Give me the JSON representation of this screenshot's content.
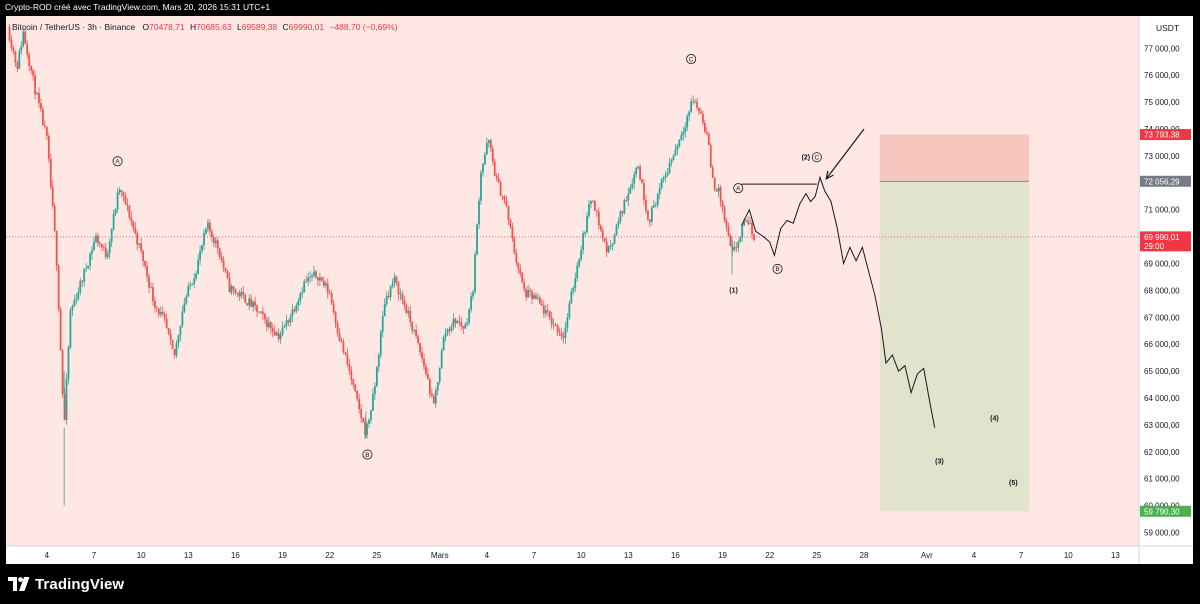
{
  "header": {
    "attribution": "Crypto-ROD créé avec TradingView.com, Mars 20, 2026 15:31 UTC+1"
  },
  "footer": {
    "brand": "TradingView"
  },
  "chart_data": {
    "type": "candlestick",
    "legend": {
      "symbol": "Bitcoin / TetherUS · 3h · Binance",
      "o_label": "O",
      "o": "70478,71",
      "h_label": "H",
      "h": "70685,63",
      "l_label": "L",
      "l": "69589,38",
      "c_label": "C",
      "c": "69990,01",
      "change": "−488,70 (−0,69%)"
    },
    "currency": "USDT",
    "ylim": [
      58500,
      78200
    ],
    "y_ticks": [
      {
        "value": 59000,
        "label": "59 000,00"
      },
      {
        "value": 60000,
        "label": "60 000,00"
      },
      {
        "value": 61000,
        "label": "61 000,00"
      },
      {
        "value": 62000,
        "label": "62 000,00"
      },
      {
        "value": 63000,
        "label": "63 000,00"
      },
      {
        "value": 64000,
        "label": "64 000,00"
      },
      {
        "value": 65000,
        "label": "65 000,00"
      },
      {
        "value": 66000,
        "label": "66 000,00"
      },
      {
        "value": 67000,
        "label": "67 000,00"
      },
      {
        "value": 68000,
        "label": "68 000,00"
      },
      {
        "value": 69000,
        "label": "69 000,00"
      },
      {
        "value": 71000,
        "label": "71 000,00"
      },
      {
        "value": 72000,
        "label": "72 000,00"
      },
      {
        "value": 73000,
        "label": "73 000,00"
      },
      {
        "value": 74000,
        "label": "74 000,00"
      },
      {
        "value": 75000,
        "label": "75 000,00"
      },
      {
        "value": 76000,
        "label": "76 000,00"
      },
      {
        "value": 77000,
        "label": "77 000,00"
      }
    ],
    "price_tags": [
      {
        "value": 73793.38,
        "label": "73 793,38",
        "color": "#f23645"
      },
      {
        "value": 72056.29,
        "label": "72 056,29",
        "color": "#787b86"
      },
      {
        "value": 69990.01,
        "label": "69 990,01",
        "sublabel": "29:00",
        "color": "#f23645"
      },
      {
        "value": 59790.3,
        "label": "59 790,30",
        "color": "#4caf50"
      }
    ],
    "x_ticks": [
      {
        "day": 4,
        "label": "4"
      },
      {
        "day": 7,
        "label": "7"
      },
      {
        "day": 10,
        "label": "10"
      },
      {
        "day": 13,
        "label": "13"
      },
      {
        "day": 16,
        "label": "16"
      },
      {
        "day": 19,
        "label": "19"
      },
      {
        "day": 22,
        "label": "22"
      },
      {
        "day": 25,
        "label": "25"
      },
      {
        "day": 29,
        "label": "Mars"
      },
      {
        "day": 32,
        "label": "4"
      },
      {
        "day": 35,
        "label": "7"
      },
      {
        "day": 38,
        "label": "10"
      },
      {
        "day": 41,
        "label": "13"
      },
      {
        "day": 44,
        "label": "16"
      },
      {
        "day": 47,
        "label": "19"
      },
      {
        "day": 50,
        "label": "22"
      },
      {
        "day": 53,
        "label": "25"
      },
      {
        "day": 56,
        "label": "28"
      },
      {
        "day": 60,
        "label": "Avr"
      },
      {
        "day": 63,
        "label": "4"
      },
      {
        "day": 66,
        "label": "7"
      },
      {
        "day": 69,
        "label": "10"
      },
      {
        "day": 72,
        "label": "13"
      }
    ],
    "xlim": [
      1.4,
      73.5
    ],
    "candle_anchors": [
      [
        1.5,
        77800
      ],
      [
        2.1,
        76300
      ],
      [
        2.5,
        77600
      ],
      [
        3.2,
        75600
      ],
      [
        4.0,
        73600
      ],
      [
        4.6,
        69400
      ],
      [
        5.1,
        62900
      ],
      [
        5.5,
        67200
      ],
      [
        6.3,
        68500
      ],
      [
        7.1,
        70000
      ],
      [
        7.8,
        69300
      ],
      [
        8.6,
        71800
      ],
      [
        9.2,
        70900
      ],
      [
        10.1,
        69200
      ],
      [
        10.8,
        67600
      ],
      [
        11.5,
        66800
      ],
      [
        12.1,
        65500
      ],
      [
        12.7,
        67500
      ],
      [
        13.5,
        68800
      ],
      [
        14.2,
        70400
      ],
      [
        14.9,
        69600
      ],
      [
        15.6,
        68100
      ],
      [
        16.4,
        67800
      ],
      [
        17.3,
        67300
      ],
      [
        18.0,
        66800
      ],
      [
        18.8,
        66300
      ],
      [
        19.6,
        67200
      ],
      [
        20.4,
        68300
      ],
      [
        21.2,
        68600
      ],
      [
        22.0,
        67900
      ],
      [
        22.6,
        66300
      ],
      [
        23.2,
        65100
      ],
      [
        23.8,
        63700
      ],
      [
        24.3,
        62700
      ],
      [
        24.8,
        64100
      ],
      [
        25.5,
        67600
      ],
      [
        26.1,
        68400
      ],
      [
        26.8,
        67400
      ],
      [
        27.5,
        66200
      ],
      [
        28.2,
        64800
      ],
      [
        28.6,
        63600
      ],
      [
        29.3,
        66400
      ],
      [
        30.0,
        66900
      ],
      [
        30.6,
        66600
      ],
      [
        31.1,
        67900
      ],
      [
        31.6,
        72400
      ],
      [
        32.1,
        73600
      ],
      [
        32.6,
        72100
      ],
      [
        33.2,
        71200
      ],
      [
        33.8,
        69300
      ],
      [
        34.4,
        67900
      ],
      [
        35.1,
        67700
      ],
      [
        35.7,
        67200
      ],
      [
        36.3,
        66700
      ],
      [
        36.9,
        66300
      ],
      [
        37.6,
        68500
      ],
      [
        38.2,
        70200
      ],
      [
        38.7,
        71600
      ],
      [
        39.2,
        70300
      ],
      [
        39.7,
        69400
      ],
      [
        40.4,
        70600
      ],
      [
        41.0,
        71700
      ],
      [
        41.6,
        72700
      ],
      [
        42.3,
        70600
      ],
      [
        42.9,
        71600
      ],
      [
        43.5,
        72500
      ],
      [
        44.1,
        73400
      ],
      [
        44.6,
        74200
      ],
      [
        45.1,
        75100
      ],
      [
        45.6,
        74600
      ],
      [
        46.0,
        73800
      ],
      [
        46.4,
        72000
      ],
      [
        46.8,
        71600
      ],
      [
        47.2,
        70400
      ],
      [
        47.6,
        69300
      ],
      [
        48.0,
        69800
      ],
      [
        48.5,
        70700
      ],
      [
        49.0,
        69990
      ]
    ],
    "forecast_path": [
      [
        48.2,
        70400
      ],
      [
        48.7,
        71000
      ],
      [
        49.1,
        70200
      ],
      [
        49.6,
        70000
      ],
      [
        50.0,
        69800
      ],
      [
        50.3,
        69300
      ],
      [
        50.7,
        70300
      ],
      [
        51.1,
        70600
      ],
      [
        51.5,
        70500
      ],
      [
        51.9,
        71200
      ],
      [
        52.3,
        71600
      ],
      [
        52.6,
        71300
      ],
      [
        52.9,
        71500
      ],
      [
        53.2,
        72200
      ],
      [
        53.5,
        71700
      ],
      [
        53.9,
        71300
      ],
      [
        54.3,
        70300
      ],
      [
        54.7,
        69000
      ],
      [
        55.1,
        69600
      ],
      [
        55.5,
        69100
      ],
      [
        55.9,
        69600
      ],
      [
        56.3,
        68700
      ],
      [
        56.7,
        67800
      ],
      [
        57.1,
        66600
      ],
      [
        57.4,
        65300
      ],
      [
        57.8,
        65600
      ],
      [
        58.2,
        65000
      ],
      [
        58.6,
        65200
      ],
      [
        59.0,
        64200
      ],
      [
        59.4,
        64900
      ],
      [
        59.8,
        65100
      ],
      [
        60.2,
        63800
      ],
      [
        60.5,
        62900
      ]
    ],
    "hline": {
      "x1": 48.2,
      "x2": 53.0,
      "y": 71950
    },
    "current_price_line": 69990.01,
    "risk_box": {
      "x1": 57.0,
      "x2": 66.5,
      "top": 73793.38,
      "entry": 72056.29,
      "bottom": 59790.3
    },
    "wave_labels": [
      {
        "text": "A",
        "x": 8.5,
        "y": 72800,
        "circle": true
      },
      {
        "text": "B",
        "x": 24.4,
        "y": 61900,
        "circle": true
      },
      {
        "text": "C",
        "x": 45.0,
        "y": 76600,
        "circle": true
      },
      {
        "text": "A",
        "x": 48.0,
        "y": 71800,
        "circle": true
      },
      {
        "text": "B",
        "x": 50.5,
        "y": 68800,
        "circle": true
      },
      {
        "text": "C",
        "x": 53.0,
        "y": 72950,
        "circle": true
      },
      {
        "text": "(2)",
        "x": 52.3,
        "y": 72950,
        "circle": false
      },
      {
        "text": "(1)",
        "x": 47.7,
        "y": 68000,
        "circle": false
      },
      {
        "text": "(3)",
        "x": 60.8,
        "y": 61650,
        "circle": false
      },
      {
        "text": "(4)",
        "x": 64.3,
        "y": 63250,
        "circle": false
      },
      {
        "text": "(5)",
        "x": 65.5,
        "y": 60850,
        "circle": false
      }
    ],
    "arrow": {
      "from": [
        56.0,
        74000
      ],
      "to": [
        53.6,
        72150
      ]
    },
    "colors": {
      "background": "#ffe8e4",
      "up": "#26a69a",
      "down": "#ef5350",
      "stop_zone": "#f7c7bf",
      "target_zone": "#e2e3cd",
      "text": "#131722"
    }
  }
}
